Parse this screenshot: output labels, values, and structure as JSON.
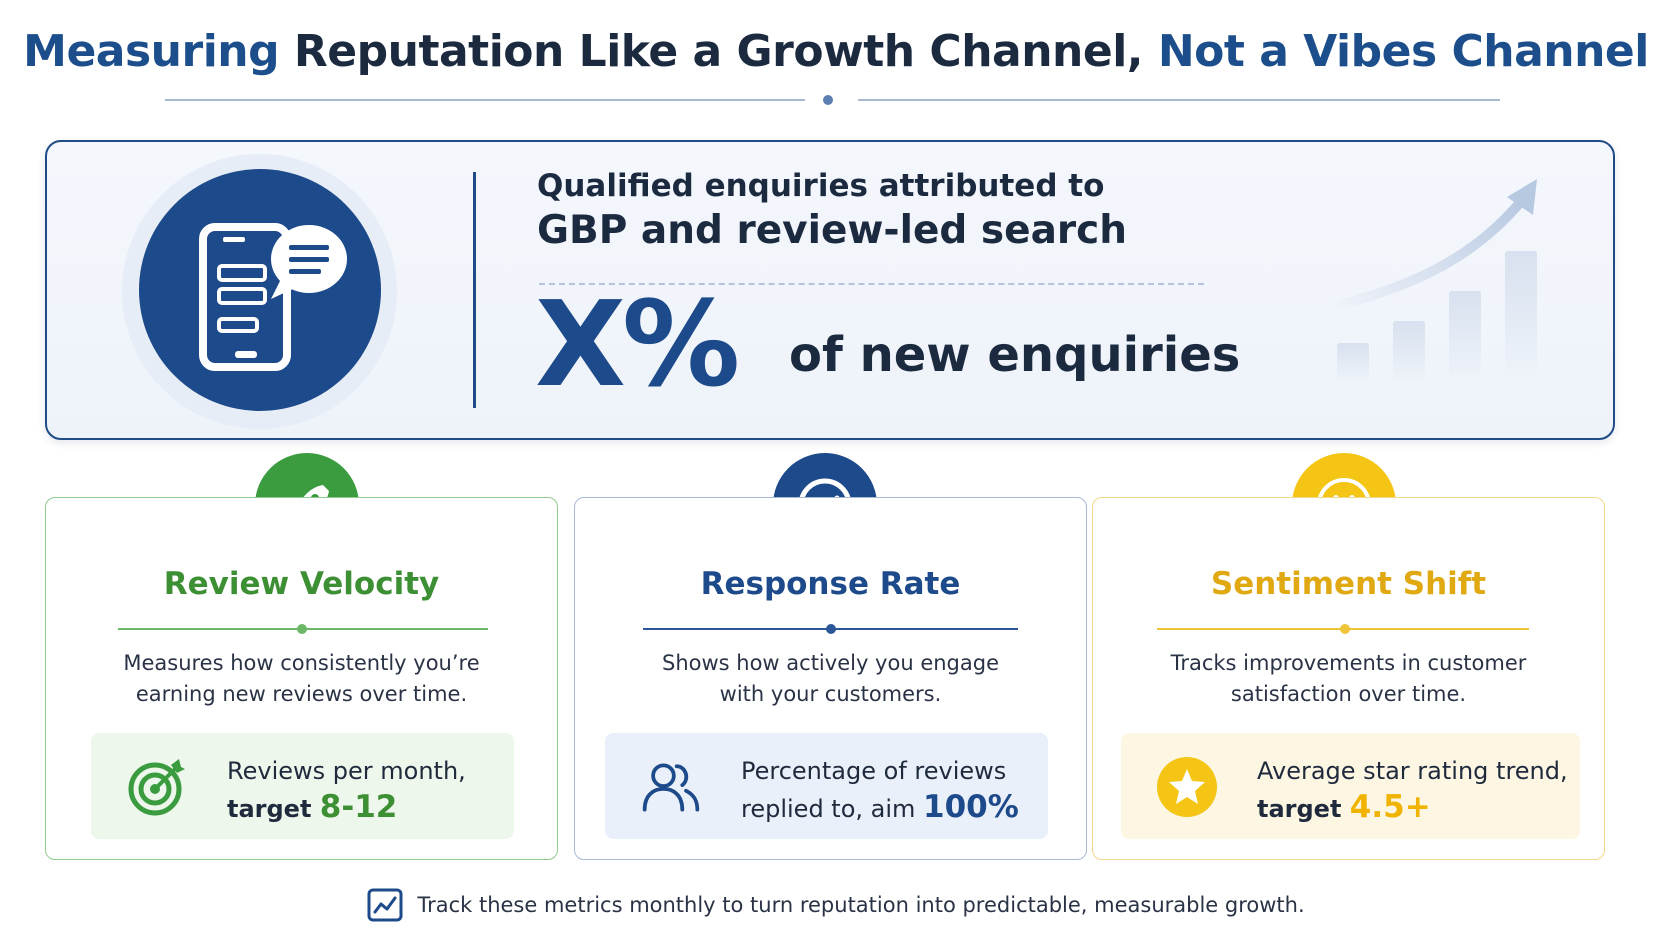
{
  "title": {
    "part1": "Measuring",
    "part2": " Reputation Like a Growth Channel, ",
    "part3": "Not a Vibes Channel"
  },
  "hero": {
    "subtitle": "Qualified enquiries attributed to",
    "headline": "GBP and review-led search",
    "big_value": "X%",
    "big_suffix": "of new enquiries"
  },
  "cards": [
    {
      "title": "Review Velocity",
      "desc_line1": "Measures how consistently you’re",
      "desc_line2": "earning new reviews over time.",
      "metric_line1": "Reviews per month,",
      "metric_line2_prefix": "target ",
      "metric_value": "8-12",
      "icon": "rocket-icon",
      "metric_icon": "target-icon",
      "accent": "#3a9b3f"
    },
    {
      "title": "Response Rate",
      "desc_line1": "Shows how actively you engage",
      "desc_line2": "with your customers.",
      "metric_line1": "Percentage of reviews",
      "metric_line2_prefix": "replied to, aim ",
      "metric_value": "100%",
      "icon": "check-circle-icon",
      "metric_icon": "users-icon",
      "accent": "#1c4a8a"
    },
    {
      "title": "Sentiment Shift",
      "desc_line1": "Tracks improvements in customer",
      "desc_line2": "satisfaction over time.",
      "metric_line1": "Average star rating trend,",
      "metric_line2_prefix": "target ",
      "metric_value": "4.5+",
      "icon": "smiley-icon",
      "metric_icon": "star-icon",
      "accent": "#f4c514"
    }
  ],
  "footer": {
    "text": "Track these metrics monthly to turn reputation into predictable, measurable growth.",
    "icon": "trend-chart-icon"
  }
}
